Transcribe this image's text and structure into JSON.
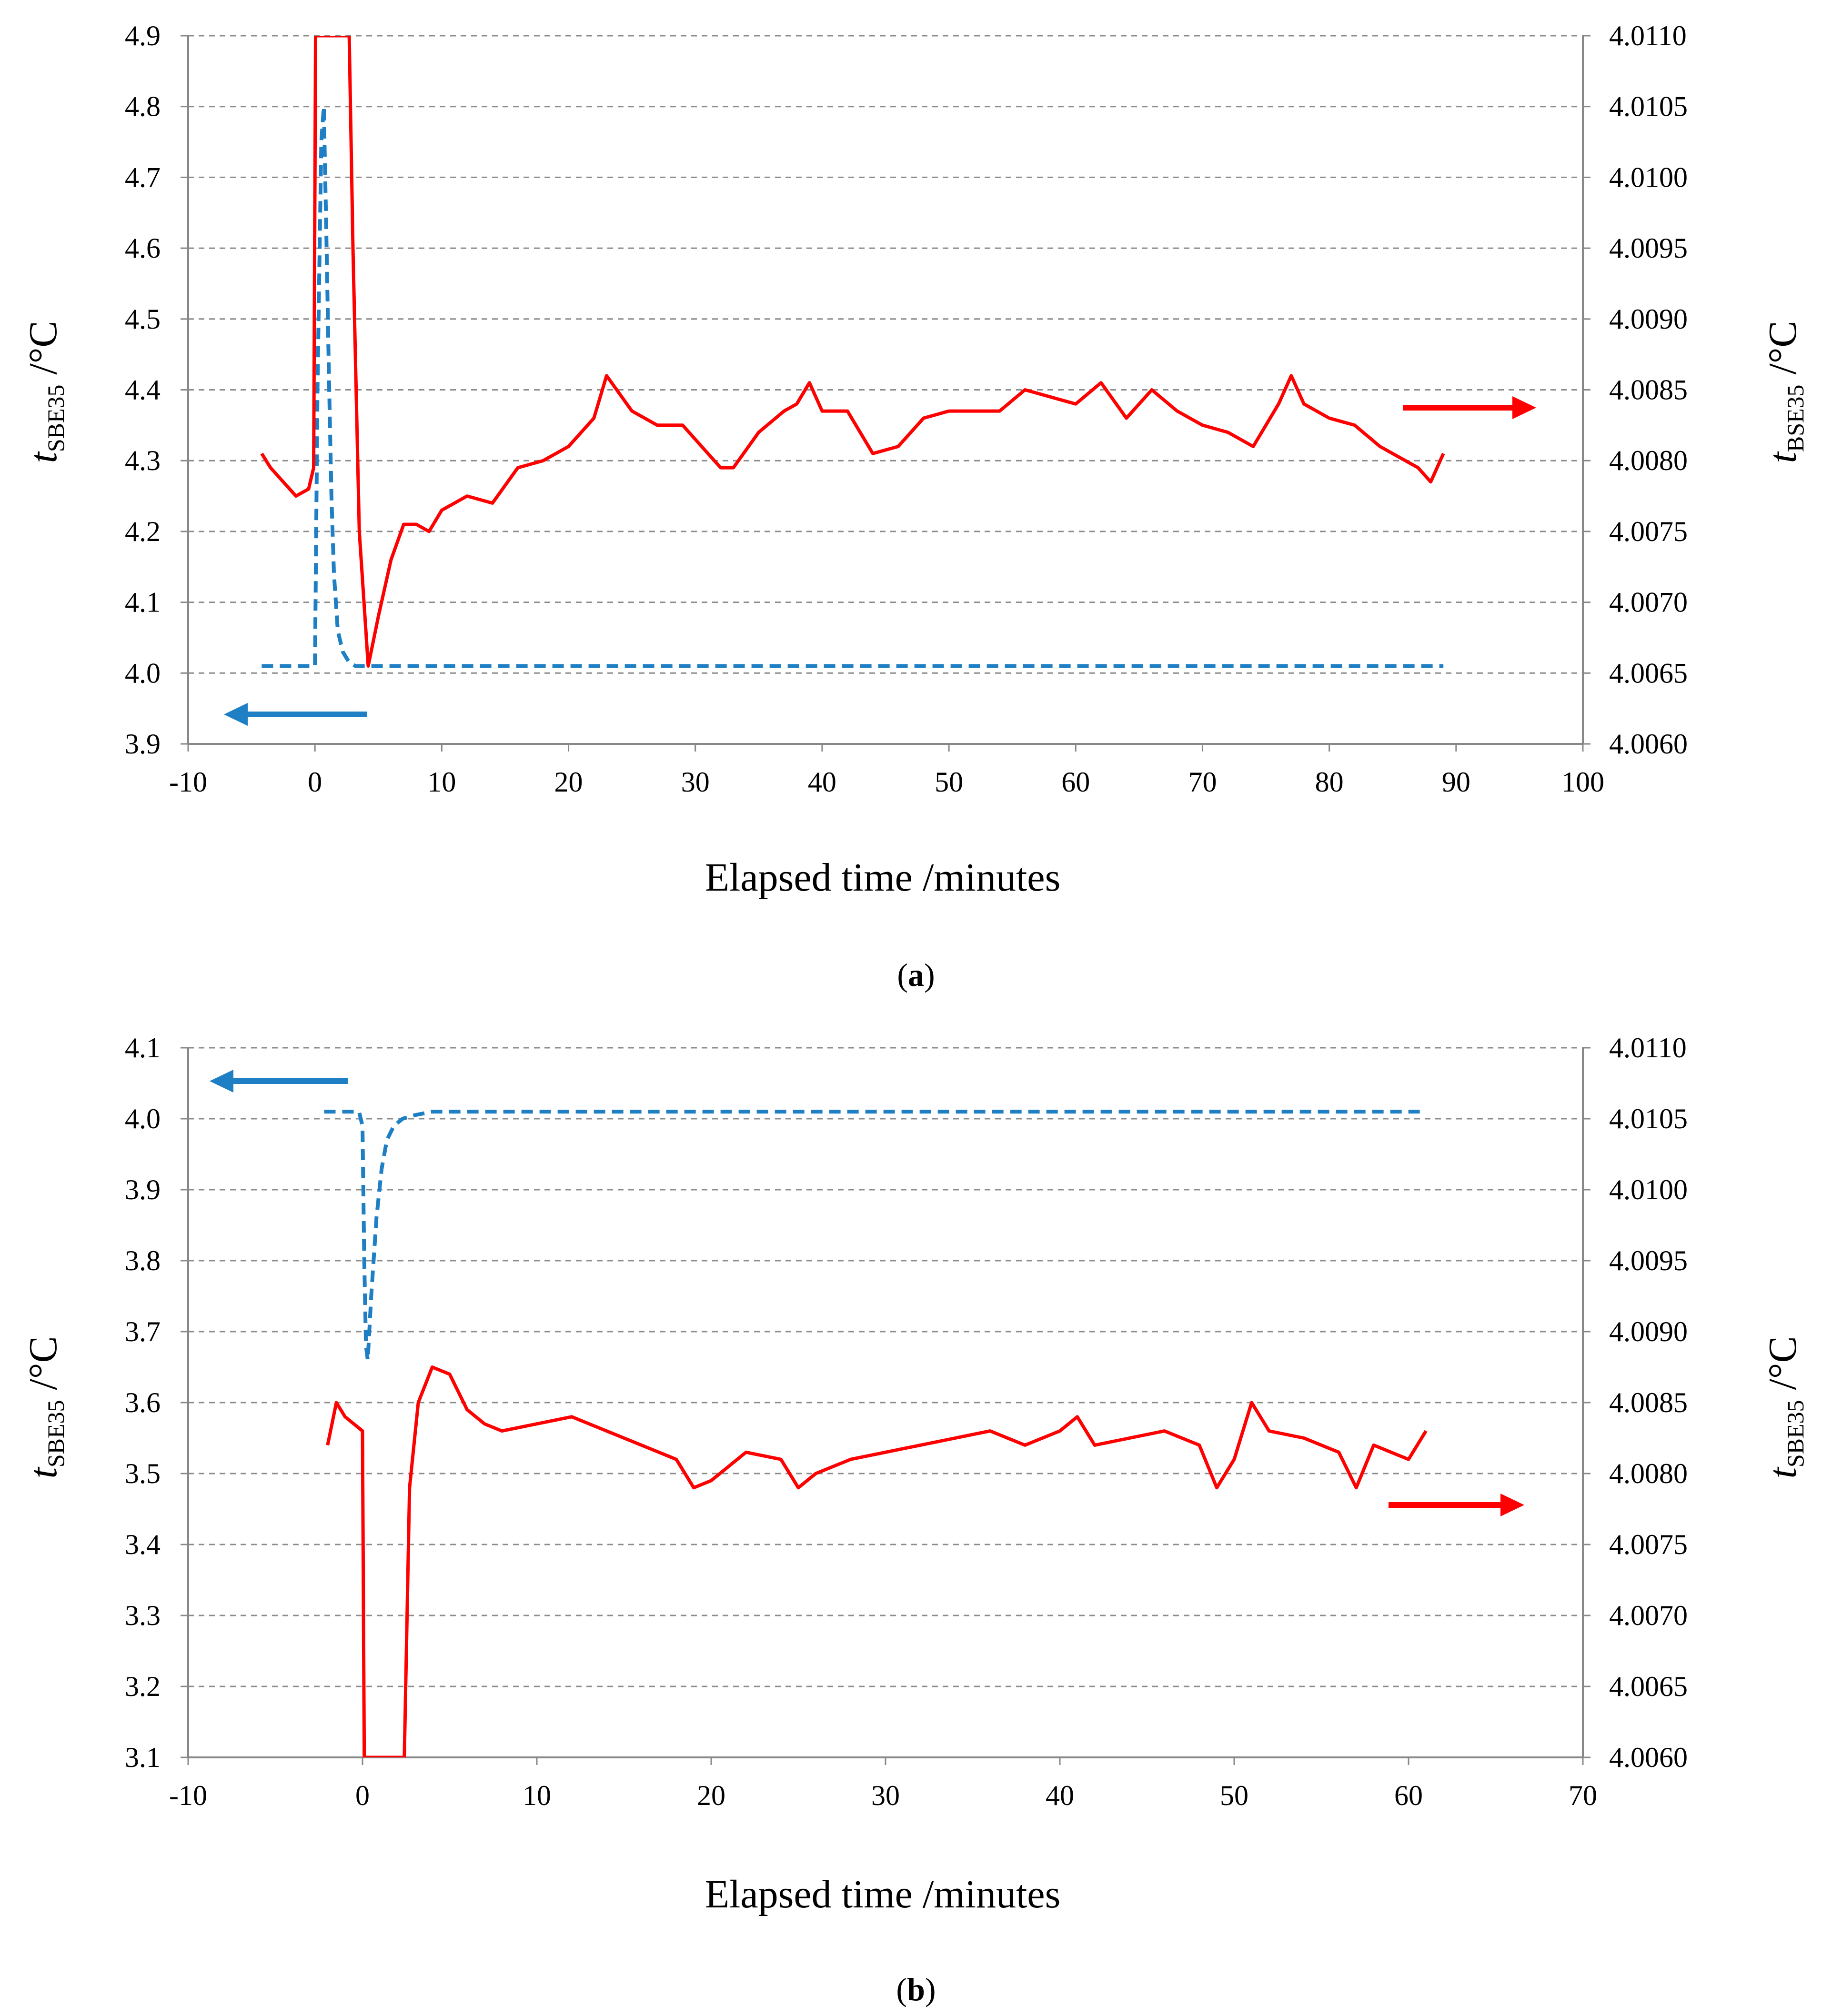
{
  "chart_data": [
    {
      "id": "a",
      "type": "line",
      "caption_letter": "a",
      "xlabel": "Elapsed time /minutes",
      "xlim": [
        -10,
        100
      ],
      "xticks": [
        -10,
        0,
        10,
        20,
        30,
        40,
        50,
        60,
        70,
        80,
        90,
        100
      ],
      "ylabel_left": {
        "base": "t",
        "sub": "SBE35",
        "unit": " /°C"
      },
      "ylabel_right": {
        "base": "t",
        "sub": "BSE35",
        "unit": " /°C"
      },
      "ylim_left": [
        3.9,
        4.9
      ],
      "yticks_left": [
        "3.9",
        "4.0",
        "4.1",
        "4.2",
        "4.3",
        "4.4",
        "4.5",
        "4.6",
        "4.7",
        "4.8",
        "4.9"
      ],
      "ylim_right": [
        4.006,
        4.011
      ],
      "yticks_right": [
        "4.0060",
        "4.0065",
        "4.0070",
        "4.0075",
        "4.0080",
        "4.0085",
        "4.0090",
        "4.0095",
        "4.0100",
        "4.0105",
        "4.0110"
      ],
      "grid": true,
      "series": [
        {
          "name": "left axis (dashed blue)",
          "axis": "left",
          "style": "dashed",
          "color": "#1f7fc4",
          "x": [
            -4.2,
            0,
            0.2,
            0.5,
            0.7,
            0.9,
            1.1,
            1.3,
            1.5,
            1.8,
            2.2,
            2.7,
            3.2,
            4.0,
            89
          ],
          "y": [
            4.01,
            4.01,
            4.4,
            4.75,
            4.8,
            4.62,
            4.42,
            4.25,
            4.14,
            4.06,
            4.03,
            4.015,
            4.01,
            4.01,
            4.01
          ]
        },
        {
          "name": "right axis (solid red)",
          "axis": "right",
          "style": "solid",
          "color": "#ff0000",
          "x": [
            -4.2,
            -3.5,
            -2.5,
            -1.5,
            -0.5,
            -0.1,
            0.05,
            2.7,
            3.0,
            3.5,
            4.2,
            5.0,
            6.0,
            7.0,
            8.0,
            9.0,
            10,
            12,
            14,
            16,
            18,
            20,
            22,
            23,
            25,
            27,
            29,
            31,
            32,
            33,
            35,
            37,
            38,
            39,
            40,
            42,
            44,
            46,
            48,
            50,
            52,
            54,
            56,
            58,
            60,
            62,
            64,
            66,
            68,
            70,
            72,
            74,
            76,
            77,
            78,
            80,
            82,
            84,
            86,
            87,
            88,
            89
          ],
          "y": [
            4.00805,
            4.00795,
            4.00785,
            4.00775,
            4.0078,
            4.00795,
            4.011,
            4.011,
            4.0095,
            4.0075,
            4.00655,
            4.0069,
            4.0073,
            4.00755,
            4.00755,
            4.0075,
            4.00765,
            4.00775,
            4.0077,
            4.00795,
            4.008,
            4.0081,
            4.0083,
            4.0086,
            4.00835,
            4.00825,
            4.00825,
            4.00805,
            4.00795,
            4.00795,
            4.0082,
            4.00835,
            4.0084,
            4.00855,
            4.00835,
            4.00835,
            4.00805,
            4.0081,
            4.0083,
            4.00835,
            4.00835,
            4.00835,
            4.0085,
            4.00845,
            4.0084,
            4.00855,
            4.0083,
            4.0085,
            4.00835,
            4.00825,
            4.0082,
            4.0081,
            4.0084,
            4.0086,
            4.0084,
            4.0083,
            4.00825,
            4.0081,
            4.008,
            4.00795,
            4.00785,
            4.00805
          ]
        }
      ],
      "annotations": [
        {
          "arrow": "left",
          "color": "#1f7fc4",
          "meaning": "dashed curve uses left axis"
        },
        {
          "arrow": "right",
          "color": "#ff0000",
          "meaning": "solid curve uses right axis"
        }
      ]
    },
    {
      "id": "b",
      "type": "line",
      "caption_letter": "b",
      "xlabel": "Elapsed time /minutes",
      "xlim": [
        -10,
        70
      ],
      "xticks": [
        -10,
        0,
        10,
        20,
        30,
        40,
        50,
        60,
        70
      ],
      "ylabel_left": {
        "base": "t",
        "sub": "SBE35",
        "unit": " /°C"
      },
      "ylabel_right": {
        "base": "t",
        "sub": "SBE35",
        "unit": " /°C"
      },
      "ylim_left": [
        3.1,
        4.1
      ],
      "yticks_left": [
        "3.1",
        "3.2",
        "3.3",
        "3.4",
        "3.5",
        "3.6",
        "3.7",
        "3.8",
        "3.9",
        "4.0",
        "4.1"
      ],
      "ylim_right": [
        4.006,
        4.011
      ],
      "yticks_right": [
        "4.0060",
        "4.0065",
        "4.0070",
        "4.0075",
        "4.0080",
        "4.0085",
        "4.0090",
        "4.0095",
        "4.0100",
        "4.0105",
        "4.0110"
      ],
      "grid": true,
      "series": [
        {
          "name": "left axis (dashed blue)",
          "axis": "left",
          "style": "dashed",
          "color": "#1f7fc4",
          "x": [
            -2.2,
            -0.2,
            0,
            0.1,
            0.2,
            0.3,
            0.5,
            0.8,
            1.1,
            1.4,
            1.8,
            2.3,
            3.0,
            4.0,
            61
          ],
          "y": [
            4.01,
            4.01,
            3.99,
            3.8,
            3.68,
            3.66,
            3.75,
            3.86,
            3.93,
            3.97,
            3.99,
            4.0,
            4.005,
            4.01,
            4.01
          ]
        },
        {
          "name": "right axis (solid red)",
          "axis": "right",
          "style": "solid",
          "color": "#ff0000",
          "x": [
            -2.0,
            -1.5,
            -1.0,
            -0.5,
            0,
            0.1,
            2.4,
            2.7,
            3.2,
            4.0,
            5.0,
            6.0,
            7.0,
            8.0,
            10,
            12,
            14,
            16,
            18,
            19,
            20,
            22,
            24,
            25,
            26,
            28,
            30,
            32,
            34,
            36,
            38,
            40,
            41,
            42,
            44,
            46,
            48,
            49,
            50,
            51,
            52,
            54,
            56,
            57,
            58,
            60,
            61
          ],
          "y": [
            4.0082,
            4.0085,
            4.0084,
            4.00835,
            4.0083,
            4.006,
            4.006,
            4.0079,
            4.0085,
            4.00875,
            4.0087,
            4.00845,
            4.00835,
            4.0083,
            4.00835,
            4.0084,
            4.0083,
            4.0082,
            4.0081,
            4.0079,
            4.00795,
            4.00815,
            4.0081,
            4.0079,
            4.008,
            4.0081,
            4.00815,
            4.0082,
            4.00825,
            4.0083,
            4.0082,
            4.0083,
            4.0084,
            4.0082,
            4.00825,
            4.0083,
            4.0082,
            4.0079,
            4.0081,
            4.0085,
            4.0083,
            4.00825,
            4.00815,
            4.0079,
            4.0082,
            4.0081,
            4.0083
          ]
        }
      ],
      "annotations": [
        {
          "arrow": "left",
          "color": "#1f7fc4",
          "meaning": "dashed curve uses left axis"
        },
        {
          "arrow": "right",
          "color": "#ff0000",
          "meaning": "solid curve uses right axis"
        }
      ]
    }
  ]
}
